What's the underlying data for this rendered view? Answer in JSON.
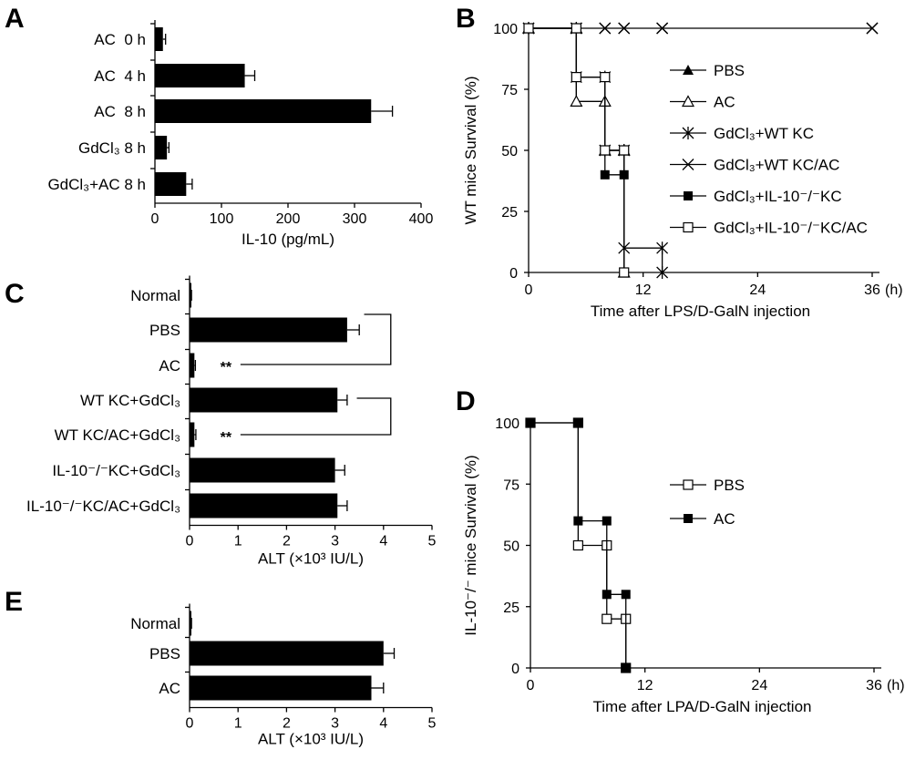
{
  "chart_data": [
    {
      "panel": "A",
      "type": "bar",
      "orientation": "horizontal",
      "categories": [
        "AC  0 h",
        "AC  4 h",
        "AC  8 h",
        "GdCl3 8 h",
        "GdCl3+AC 8 h"
      ],
      "category_display": [
        "AC  0 h",
        "AC  4 h",
        "AC  8 h",
        "GdCl₃ 8 h",
        "GdCl₃+AC 8 h"
      ],
      "values": [
        12,
        135,
        325,
        18,
        47
      ],
      "errors": [
        4,
        15,
        32,
        3,
        9
      ],
      "xlabel": "IL-10 (pg/mL)",
      "xlim": [
        0,
        400
      ],
      "xticks": [
        "0",
        "100",
        "200",
        "300",
        "400"
      ]
    },
    {
      "panel": "B",
      "type": "line",
      "step": true,
      "ylabel": "WT mice Survival (%)",
      "xlabel": "Time after LPS/D-GalN injection",
      "xlim": [
        0,
        36
      ],
      "ylim": [
        0,
        100
      ],
      "xticks": [
        "0",
        "12",
        "24",
        "36"
      ],
      "yticks": [
        "0",
        "25",
        "50",
        "75",
        "100"
      ],
      "x_unit": "(h)",
      "legend_position": "right",
      "series": [
        {
          "name": "PBS",
          "legend": "PBS",
          "marker": "triangle-filled",
          "x": [
            0,
            5,
            8,
            10
          ],
          "y": [
            100,
            70,
            50,
            0
          ]
        },
        {
          "name": "AC",
          "legend": "AC",
          "marker": "triangle-open",
          "x": [
            0,
            5,
            8,
            10
          ],
          "y": [
            100,
            70,
            50,
            0
          ]
        },
        {
          "name": "GdCl3+WT KC",
          "legend": "GdCl₃+WT KC",
          "marker": "asterisk",
          "x": [
            0,
            5,
            8,
            10,
            14
          ],
          "y": [
            100,
            80,
            50,
            10,
            0
          ]
        },
        {
          "name": "GdCl3+WT KC/AC",
          "legend": "GdCl₃+WT KC/AC",
          "marker": "x",
          "x": [
            0,
            5,
            8,
            10,
            14,
            36
          ],
          "y": [
            100,
            100,
            100,
            100,
            100,
            100
          ]
        },
        {
          "name": "GdCl3+IL-10-/-KC",
          "legend": "GdCl₃+IL-10⁻/⁻KC",
          "marker": "square-filled",
          "x": [
            0,
            5,
            8,
            10
          ],
          "y": [
            100,
            80,
            40,
            0
          ]
        },
        {
          "name": "GdCl3+IL-10-/-KC/AC",
          "legend": "GdCl₃+IL-10⁻/⁻KC/AC",
          "marker": "square-open",
          "x": [
            0,
            5,
            8,
            10
          ],
          "y": [
            100,
            80,
            50,
            0
          ]
        }
      ]
    },
    {
      "panel": "C",
      "type": "bar",
      "orientation": "horizontal",
      "categories": [
        "Normal",
        "PBS",
        "AC",
        "WT KC+GdCl3",
        "WT KC/AC+GdCl3",
        "IL-10-/-KC+GdCl3",
        "IL-10-/-KC/AC+GdCl3"
      ],
      "category_display": [
        "Normal",
        "PBS",
        "AC",
        "WT KC+GdCl₃",
        "WT KC/AC+GdCl₃",
        "IL-10⁻/⁻KC+GdCl₃",
        "IL-10⁻/⁻KC/AC+GdCl₃"
      ],
      "values": [
        0.03,
        3.25,
        0.1,
        3.05,
        0.1,
        3.0,
        3.05
      ],
      "errors": [
        0.01,
        0.25,
        0.02,
        0.2,
        0.03,
        0.2,
        0.2
      ],
      "xlabel": "ALT (×10³ IU/L)",
      "xlim": [
        0,
        5
      ],
      "xticks": [
        "0",
        "1",
        "2",
        "3",
        "4",
        "5"
      ],
      "annotations": [
        {
          "text": "**",
          "category": "AC",
          "compared_with": "PBS"
        },
        {
          "text": "**",
          "category": "WT KC/AC+GdCl3",
          "compared_with": "WT KC+GdCl3"
        }
      ]
    },
    {
      "panel": "D",
      "type": "line",
      "step": true,
      "ylabel": "IL-10⁻/⁻ mice Survival (%)",
      "xlabel": "Time after LPA/D-GalN injection",
      "xlim": [
        0,
        36
      ],
      "ylim": [
        0,
        100
      ],
      "xticks": [
        "0",
        "12",
        "24",
        "36"
      ],
      "yticks": [
        "0",
        "25",
        "50",
        "75",
        "100"
      ],
      "x_unit": "(h)",
      "legend_position": "right",
      "series": [
        {
          "name": "PBS",
          "legend": "PBS",
          "marker": "square-open",
          "x": [
            0,
            5,
            8,
            10
          ],
          "y": [
            100,
            50,
            20,
            0
          ]
        },
        {
          "name": "AC",
          "legend": "AC",
          "marker": "square-filled",
          "x": [
            0,
            5,
            8,
            10
          ],
          "y": [
            100,
            60,
            30,
            0
          ]
        }
      ]
    },
    {
      "panel": "E",
      "type": "bar",
      "orientation": "horizontal",
      "categories": [
        "Normal",
        "PBS",
        "AC"
      ],
      "category_display": [
        "Normal",
        "PBS",
        "AC"
      ],
      "values": [
        0.03,
        4.0,
        3.75
      ],
      "errors": [
        0.01,
        0.22,
        0.25
      ],
      "xlabel": "ALT (×10³ IU/L)",
      "xlim": [
        0,
        5
      ],
      "xticks": [
        "0",
        "1",
        "2",
        "3",
        "4",
        "5"
      ]
    }
  ]
}
